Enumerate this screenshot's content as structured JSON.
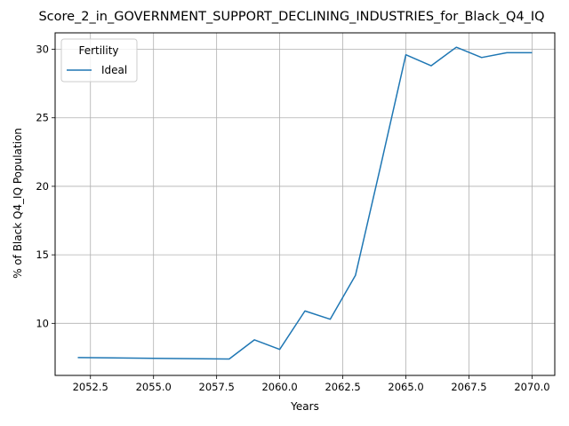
{
  "chart_data": {
    "type": "line",
    "title": "Score_2_in_GOVERNMENT_SUPPORT_DECLINING_INDUSTRIES_for_Black_Q4_IQ",
    "xlabel": "Years",
    "ylabel": "% of Black Q4_IQ Population",
    "xlim": [
      2051.1,
      2070.9
    ],
    "ylim": [
      6.2,
      31.2
    ],
    "xticks": [
      2052.5,
      2055.0,
      2057.5,
      2060.0,
      2062.5,
      2065.0,
      2067.5,
      2070.0
    ],
    "xtick_labels": [
      "2052.5",
      "2055.0",
      "2057.5",
      "2060.0",
      "2062.5",
      "2065.0",
      "2067.5",
      "2070.0"
    ],
    "yticks": [
      10,
      15,
      20,
      25,
      30
    ],
    "ytick_labels": [
      "10",
      "15",
      "20",
      "25",
      "30"
    ],
    "grid": true,
    "legend": {
      "title": "Fertility",
      "position": "top-left"
    },
    "series": [
      {
        "name": "Ideal",
        "color": "#1f77b4",
        "x": [
          2052,
          2055,
          2058,
          2059,
          2060,
          2061,
          2062,
          2063,
          2064,
          2065,
          2066,
          2067,
          2068,
          2069,
          2070
        ],
        "y": [
          7.5,
          7.45,
          7.4,
          8.8,
          8.1,
          10.9,
          10.3,
          13.5,
          21.5,
          29.6,
          28.8,
          30.15,
          29.4,
          29.75,
          29.75
        ]
      }
    ]
  }
}
